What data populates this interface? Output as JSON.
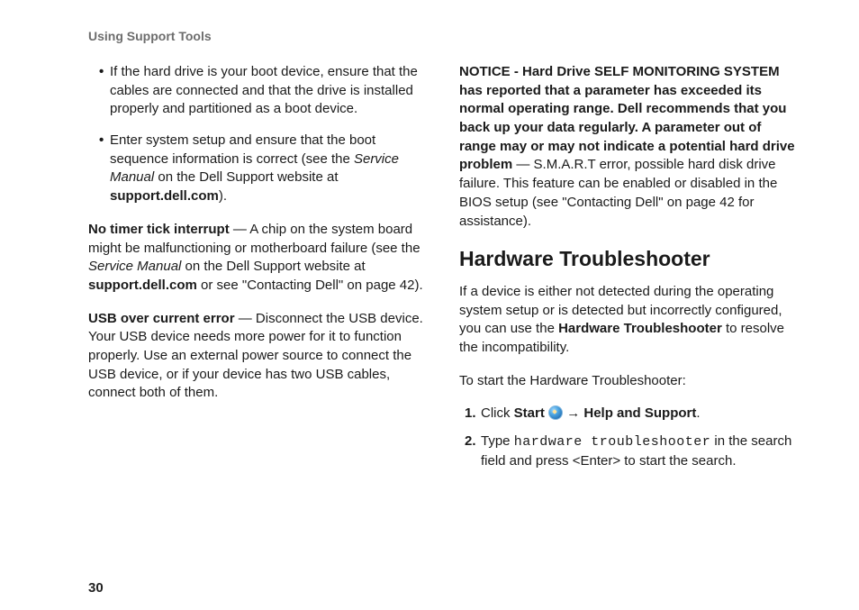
{
  "header": "Using Support Tools",
  "page_number": "30",
  "left": {
    "bullets": [
      {
        "text_before": "If the hard drive is your boot device, ensure that the cables are connected and that the drive is installed properly and partitioned as a boot device."
      },
      {
        "prefix": "Enter system setup and ensure that the boot sequence information is correct (see the ",
        "italic": "Service Manual",
        "middle": " on the Dell Support website at ",
        "bold": "support.dell.com",
        "suffix": ")."
      }
    ],
    "para1": {
      "lead_bold": "No timer tick interrupt",
      "text1": " — A chip on the system board might be malfunctioning or motherboard failure (see the ",
      "italic": "Service Manual",
      "text2": " on the Dell Support website at ",
      "bold2": "support.dell.com",
      "text3": " or see \"Contacting Dell\" on page 42)."
    },
    "para2": {
      "lead_bold": "USB over current error",
      "text": " — Disconnect the USB device. Your USB device needs more power for it to function properly. Use an external power source to connect the USB device, or if your device has two USB cables, connect both of them."
    }
  },
  "right": {
    "notice": {
      "bold": "NOTICE - Hard Drive SELF MONITORING SYSTEM has reported that a parameter has exceeded its normal operating range. Dell recommends that you back up your data regularly. A parameter out of range may or may not indicate a potential hard drive problem",
      "text": " — S.M.A.R.T error, possible hard disk drive failure. This feature can be enabled or disabled in the BIOS setup (see \"Contacting Dell\" on page 42 for assistance)."
    },
    "heading": "Hardware Troubleshooter",
    "intro": {
      "text1": "If a device is either not detected during the operating system setup or is detected but incorrectly configured, you can use the ",
      "bold": "Hardware Troubleshooter",
      "text2": " to resolve the incompatibility."
    },
    "start_line": "To start the Hardware Troubleshooter:",
    "steps": {
      "step1": {
        "prefix": "Click ",
        "bold1": "Start",
        "arrow": " → ",
        "bold2": "Help and Support",
        "suffix": "."
      },
      "step2": {
        "prefix": "Type ",
        "mono": "hardware troubleshooter",
        "suffix": " in the search field and press <Enter> to start the search."
      }
    }
  },
  "colors": {
    "page_bg": "#ffffff",
    "body_text": "#1a1a1a",
    "header_text": "#6d6d6d"
  },
  "typography": {
    "body_fontsize": 15,
    "header_fontsize": 14,
    "h2_fontsize": 23,
    "line_height": 1.38
  }
}
